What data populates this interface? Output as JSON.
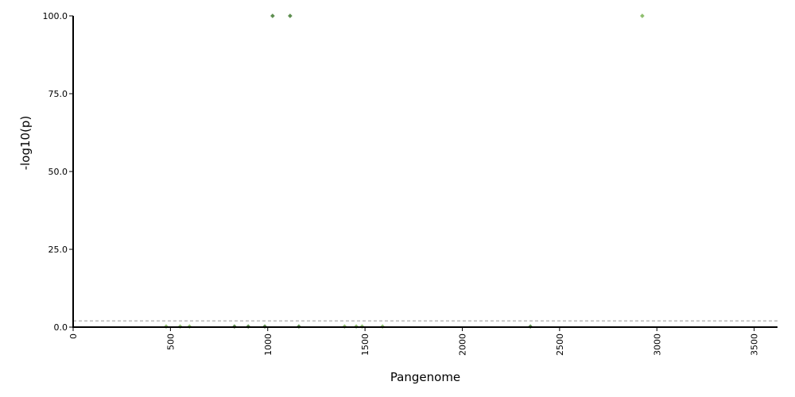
{
  "chart_data": {
    "type": "scatter",
    "title": "",
    "xlabel": "Pangenome",
    "ylabel": "-log10(p)",
    "xlim": [
      0,
      3620
    ],
    "ylim": [
      0,
      100
    ],
    "x_ticks": [
      0,
      500,
      1000,
      1500,
      2000,
      2500,
      3000,
      3500
    ],
    "x_tick_labels": [
      "0",
      "500",
      "1000",
      "1500",
      "2000",
      "2500",
      "3000",
      "3500"
    ],
    "y_ticks": [
      0,
      25,
      50,
      75,
      100
    ],
    "y_tick_labels": [
      "0.0",
      "25.0",
      "50.0",
      "75.0",
      "100.0"
    ],
    "threshold": 2.0,
    "grid": false,
    "colors": {
      "point_dark": "#5e8f50",
      "point_light": "#8fbf6f",
      "threshold_line": "#999999",
      "axis": "#000000"
    },
    "points": [
      {
        "x": 478,
        "y": 0.2,
        "shade": "light"
      },
      {
        "x": 550,
        "y": 0.2,
        "shade": "light"
      },
      {
        "x": 598,
        "y": 0.2,
        "shade": "light"
      },
      {
        "x": 829,
        "y": 0.2,
        "shade": "dark"
      },
      {
        "x": 900,
        "y": 0.2,
        "shade": "dark"
      },
      {
        "x": 985,
        "y": 0.2,
        "shade": "dark"
      },
      {
        "x": 1025,
        "y": 100,
        "shade": "dark"
      },
      {
        "x": 1115,
        "y": 100,
        "shade": "dark"
      },
      {
        "x": 1160,
        "y": 0.2,
        "shade": "dark"
      },
      {
        "x": 1395,
        "y": 0.2,
        "shade": "light"
      },
      {
        "x": 1455,
        "y": 0.2,
        "shade": "light"
      },
      {
        "x": 1485,
        "y": 0.2,
        "shade": "light"
      },
      {
        "x": 1590,
        "y": 0.2,
        "shade": "light"
      },
      {
        "x": 2350,
        "y": 0.2,
        "shade": "dark"
      },
      {
        "x": 2925,
        "y": 100,
        "shade": "light"
      }
    ]
  }
}
